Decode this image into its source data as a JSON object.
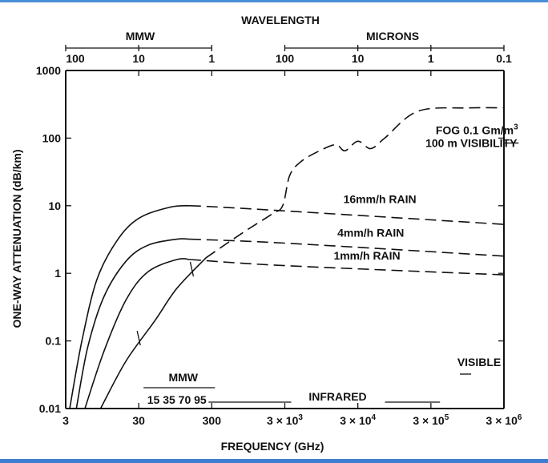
{
  "chart_data": {
    "type": "line",
    "top_axis": {
      "title": "WAVELENGTH",
      "segments": [
        {
          "label": "MMW",
          "ticks": [
            "100",
            "10",
            "1"
          ]
        },
        {
          "label": "MICRONS",
          "ticks": [
            "100",
            "10",
            "1",
            "0.1"
          ]
        }
      ]
    },
    "xlabel": "FREQUENCY (GHz)",
    "ylabel": "ONE-WAY ATTENUATION (dB/km)",
    "x_scale": "log",
    "y_scale": "log",
    "xlim": [
      3,
      3000000
    ],
    "ylim": [
      0.01,
      1000
    ],
    "x_ticks": [
      {
        "value": 3,
        "label": "3",
        "sup": ""
      },
      {
        "value": 30,
        "label": "30",
        "sup": ""
      },
      {
        "value": 300,
        "label": "300",
        "sup": ""
      },
      {
        "value": 3000,
        "label": "3 × 10",
        "sup": "3"
      },
      {
        "value": 30000,
        "label": "3 × 10",
        "sup": "4"
      },
      {
        "value": 300000,
        "label": "3 × 10",
        "sup": "5"
      },
      {
        "value": 3000000,
        "label": "3 × 10",
        "sup": "6"
      }
    ],
    "y_ticks": [
      {
        "value": 1000,
        "label": "1000"
      },
      {
        "value": 100,
        "label": "100"
      },
      {
        "value": 10,
        "label": "10"
      },
      {
        "value": 1,
        "label": "1"
      },
      {
        "value": 0.1,
        "label": "0.1"
      },
      {
        "value": 0.01,
        "label": "0.01"
      }
    ],
    "series": [
      {
        "name": "16mm/h RAIN",
        "solid": [
          [
            3.4,
            0.01
          ],
          [
            5,
            0.1
          ],
          [
            8,
            0.8
          ],
          [
            15,
            3
          ],
          [
            30,
            6.5
          ],
          [
            80,
            9.5
          ],
          [
            150,
            10
          ]
        ],
        "dashed": [
          [
            150,
            10
          ],
          [
            1000,
            9
          ],
          [
            3000000,
            5.3
          ]
        ]
      },
      {
        "name": "4mm/h RAIN",
        "solid": [
          [
            4.2,
            0.01
          ],
          [
            6,
            0.08
          ],
          [
            10,
            0.45
          ],
          [
            20,
            1.5
          ],
          [
            40,
            2.6
          ],
          [
            100,
            3.2
          ],
          [
            150,
            3.2
          ]
        ],
        "dashed": [
          [
            150,
            3.2
          ],
          [
            3000,
            2.8
          ],
          [
            3000000,
            1.8
          ]
        ]
      },
      {
        "name": "1mm/h RAIN",
        "solid": [
          [
            5.5,
            0.01
          ],
          [
            10,
            0.07
          ],
          [
            20,
            0.4
          ],
          [
            40,
            1.05
          ],
          [
            100,
            1.6
          ],
          [
            150,
            1.6
          ]
        ],
        "dashed": [
          [
            150,
            1.6
          ],
          [
            3000,
            1.3
          ],
          [
            3000000,
            0.95
          ]
        ]
      },
      {
        "name": "FOG 0.1 Gm/m³ 100 m VISIBILITY",
        "solid": [
          [
            9,
            0.01
          ],
          [
            20,
            0.05
          ],
          [
            50,
            0.2
          ],
          [
            100,
            0.6
          ],
          [
            250,
            1.7
          ]
        ],
        "dashed": [
          [
            250,
            1.7
          ],
          [
            800,
            4
          ],
          [
            2000,
            7.5
          ],
          [
            2800,
            10
          ],
          [
            3500,
            28
          ],
          [
            5000,
            45
          ],
          [
            9000,
            65
          ],
          [
            15000,
            80
          ],
          [
            20000,
            65
          ],
          [
            30000,
            90
          ],
          [
            45000,
            70
          ],
          [
            70000,
            100
          ],
          [
            200000,
            250
          ],
          [
            1000000,
            280
          ],
          [
            3000000,
            280
          ]
        ]
      }
    ],
    "annotations": [
      {
        "text": "FOG 0.1 Gm/m",
        "sup": "3",
        "line2": "100 m VISIBILITY",
        "x": 600000,
        "y": 150
      },
      {
        "text": "16mm/h RAIN",
        "x": 60000,
        "y": 11
      },
      {
        "text": "4mm/h RAIN",
        "x": 45000,
        "y": 3.5
      },
      {
        "text": "1mm/h RAIN",
        "x": 40000,
        "y": 1.6
      }
    ],
    "bands": [
      {
        "label": "MMW",
        "freqs": "15 35 70 95",
        "from": 30,
        "to": 200
      },
      {
        "label": "INFRARED",
        "from": 300,
        "to": 400000
      },
      {
        "label": "VISIBLE",
        "from": 500000,
        "to": 3000000
      }
    ],
    "grid": false
  }
}
